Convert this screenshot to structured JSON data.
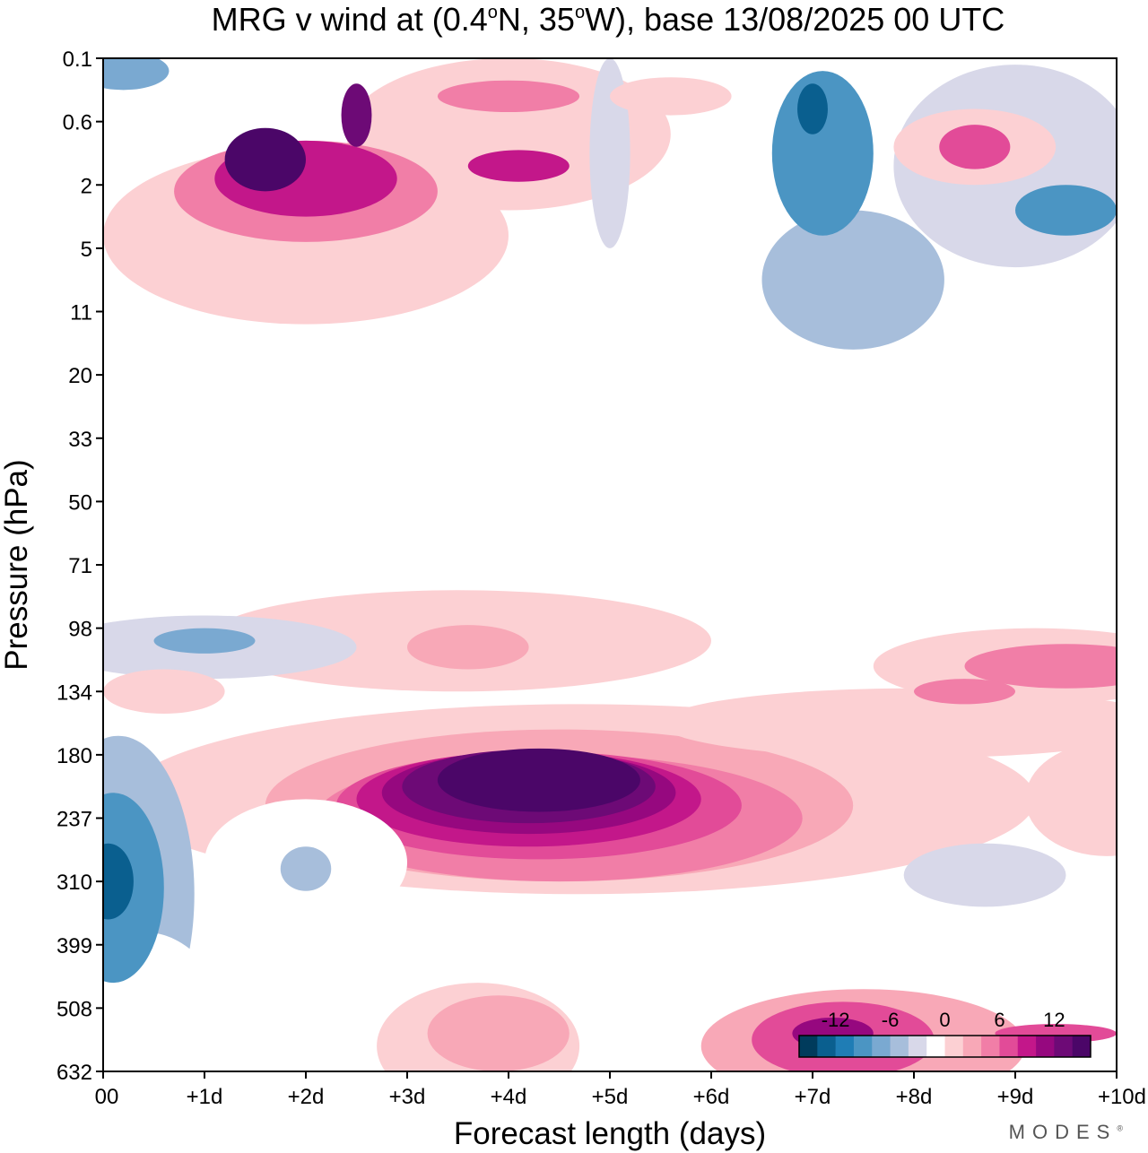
{
  "chart_data": {
    "type": "heatmap",
    "title_parts": [
      "MRG v wind at (0.4",
      "o",
      "N, 35",
      "o",
      "W),  base 13/08/2025  00 UTC"
    ],
    "xlabel": "Forecast length (days)",
    "ylabel": "Pressure (hPa)",
    "x_ticks": [
      "00",
      "+1d",
      "+2d",
      "+3d",
      "+4d",
      "+5d",
      "+6d",
      "+7d",
      "+8d",
      "+9d",
      "+10d"
    ],
    "x_range_days": [
      0,
      10
    ],
    "y_ticks": [
      "0.1",
      "0.6",
      "2",
      "5",
      "11",
      "20",
      "33",
      "50",
      "71",
      "98",
      "134",
      "180",
      "237",
      "310",
      "399",
      "508",
      "632"
    ],
    "colorbar": {
      "labels": [
        "-12",
        "-6",
        "0",
        "6",
        "12"
      ],
      "levels": [
        -16,
        -14,
        -12,
        -10,
        -8,
        -6,
        -4,
        -2,
        2,
        4,
        6,
        8,
        10,
        12,
        14,
        16
      ],
      "colors": [
        "#003b5c",
        "#0a5f8f",
        "#1f7db5",
        "#4b95c3",
        "#7aa9d1",
        "#a7bedb",
        "#d8d8e9",
        "#ffffff",
        "#fcd0d3",
        "#f8a8b7",
        "#f17ea7",
        "#e24b98",
        "#c3178a",
        "#96087f",
        "#6d0a76",
        "#4b0668"
      ]
    },
    "regions": [
      {
        "value": -6,
        "x": 0.15,
        "y": 13.2,
        "rx": 0.75,
        "ry": 2.5
      },
      {
        "value": -10,
        "x": 0.1,
        "y": 13.1,
        "rx": 0.5,
        "ry": 1.5
      },
      {
        "value": -14,
        "x": 0.05,
        "y": 13.0,
        "rx": 0.25,
        "ry": 0.6
      },
      {
        "value": -2,
        "x": 0.4,
        "y": 15.3,
        "rx": 0.8,
        "ry": 1.5
      },
      {
        "value": -4,
        "x": 1.0,
        "y": 9.3,
        "rx": 1.5,
        "ry": 0.5
      },
      {
        "value": -8,
        "x": 1.0,
        "y": 9.2,
        "rx": 0.5,
        "ry": 0.2
      },
      {
        "value": -2,
        "x": 2.0,
        "y": 12.7,
        "rx": 1.0,
        "ry": 1.0
      },
      {
        "value": -6,
        "x": 2.0,
        "y": 12.8,
        "rx": 0.25,
        "ry": 0.35
      },
      {
        "value": -4,
        "x": 8.7,
        "y": 12.9,
        "rx": 0.8,
        "ry": 0.5
      },
      {
        "value": -2,
        "x": 2.5,
        "y": 8.1,
        "rx": 1.0,
        "ry": 0.2
      },
      {
        "value": -2,
        "x": 0.1,
        "y": 6.6,
        "rx": 0.6,
        "ry": 0.3
      },
      {
        "value": -2,
        "x": 0.2,
        "y": 1.0,
        "rx": 0.5,
        "ry": 0.8
      },
      {
        "value": -8,
        "x": 0.2,
        "y": 0.2,
        "rx": 0.45,
        "ry": 0.3
      },
      {
        "value": -6,
        "x": 7.4,
        "y": 3.5,
        "rx": 0.9,
        "ry": 1.1
      },
      {
        "value": -10,
        "x": 7.1,
        "y": 1.5,
        "rx": 0.5,
        "ry": 1.3
      },
      {
        "value": -14,
        "x": 7.0,
        "y": 0.8,
        "rx": 0.15,
        "ry": 0.4
      },
      {
        "value": -4,
        "x": 9.0,
        "y": 1.7,
        "rx": 1.2,
        "ry": 1.6
      },
      {
        "value": -10,
        "x": 9.5,
        "y": 2.4,
        "rx": 0.5,
        "ry": 0.4
      },
      {
        "value": -4,
        "x": 5.0,
        "y": 1.5,
        "rx": 0.2,
        "ry": 1.5
      },
      {
        "value": -2,
        "x": 6.9,
        "y": 4.0,
        "rx": 1.5,
        "ry": 0.7
      },
      {
        "value": 2,
        "x": 4.7,
        "y": 11.7,
        "rx": 4.5,
        "ry": 1.5
      },
      {
        "value": 4,
        "x": 4.5,
        "y": 11.8,
        "rx": 2.9,
        "ry": 1.2
      },
      {
        "value": 6,
        "x": 4.5,
        "y": 12.0,
        "rx": 2.4,
        "ry": 1.0
      },
      {
        "value": 8,
        "x": 4.3,
        "y": 11.8,
        "rx": 2.0,
        "ry": 0.85
      },
      {
        "value": 10,
        "x": 4.2,
        "y": 11.7,
        "rx": 1.7,
        "ry": 0.75
      },
      {
        "value": 12,
        "x": 4.2,
        "y": 11.6,
        "rx": 1.45,
        "ry": 0.65
      },
      {
        "value": 14,
        "x": 4.2,
        "y": 11.5,
        "rx": 1.25,
        "ry": 0.58
      },
      {
        "value": 16,
        "x": 4.3,
        "y": 11.4,
        "rx": 1.0,
        "ry": 0.5
      },
      {
        "value": 4,
        "x": 3.9,
        "y": 15.4,
        "rx": 0.7,
        "ry": 0.6
      },
      {
        "value": 2,
        "x": 3.7,
        "y": 15.6,
        "rx": 1.0,
        "ry": 1.0
      },
      {
        "value": 4,
        "x": 7.5,
        "y": 15.6,
        "rx": 1.6,
        "ry": 0.9
      },
      {
        "value": 8,
        "x": 7.3,
        "y": 15.5,
        "rx": 0.9,
        "ry": 0.6
      },
      {
        "value": 12,
        "x": 7.2,
        "y": 15.4,
        "rx": 0.4,
        "ry": 0.25
      },
      {
        "value": 2,
        "x": 9.2,
        "y": 9.6,
        "rx": 1.6,
        "ry": 0.6
      },
      {
        "value": 6,
        "x": 9.5,
        "y": 9.6,
        "rx": 1.0,
        "ry": 0.35
      },
      {
        "value": 2,
        "x": 3.5,
        "y": 9.2,
        "rx": 2.5,
        "ry": 0.8
      },
      {
        "value": 4,
        "x": 3.6,
        "y": 9.3,
        "rx": 0.6,
        "ry": 0.35
      },
      {
        "value": 2,
        "x": 8.0,
        "y": 10.5,
        "rx": 2.5,
        "ry": 0.55
      },
      {
        "value": 6,
        "x": 8.5,
        "y": 10.0,
        "rx": 0.5,
        "ry": 0.2
      },
      {
        "value": 2,
        "x": 0.6,
        "y": 10.0,
        "rx": 0.6,
        "ry": 0.35
      },
      {
        "value": 2,
        "x": 9.9,
        "y": 11.7,
        "rx": 0.8,
        "ry": 0.9
      },
      {
        "value": 8,
        "x": 9.4,
        "y": 15.4,
        "rx": 0.6,
        "ry": 0.15
      },
      {
        "value": 2,
        "x": 2.0,
        "y": 2.8,
        "rx": 2.0,
        "ry": 1.4
      },
      {
        "value": 6,
        "x": 2.0,
        "y": 2.1,
        "rx": 1.3,
        "ry": 0.8
      },
      {
        "value": 10,
        "x": 2.0,
        "y": 1.9,
        "rx": 0.9,
        "ry": 0.6
      },
      {
        "value": 16,
        "x": 1.6,
        "y": 1.6,
        "rx": 0.4,
        "ry": 0.5
      },
      {
        "value": 14,
        "x": 2.5,
        "y": 0.9,
        "rx": 0.15,
        "ry": 0.5
      },
      {
        "value": 2,
        "x": 4.0,
        "y": 1.2,
        "rx": 1.6,
        "ry": 1.2
      },
      {
        "value": 6,
        "x": 4.0,
        "y": 0.6,
        "rx": 0.7,
        "ry": 0.25
      },
      {
        "value": 10,
        "x": 4.1,
        "y": 1.7,
        "rx": 0.5,
        "ry": 0.25
      },
      {
        "value": 2,
        "x": 8.6,
        "y": 1.4,
        "rx": 0.8,
        "ry": 0.6
      },
      {
        "value": 8,
        "x": 8.6,
        "y": 1.4,
        "rx": 0.35,
        "ry": 0.35
      },
      {
        "value": 2,
        "x": 5.6,
        "y": 0.6,
        "rx": 0.6,
        "ry": 0.3
      }
    ]
  },
  "brand": "MODES",
  "brand_mark": "®"
}
